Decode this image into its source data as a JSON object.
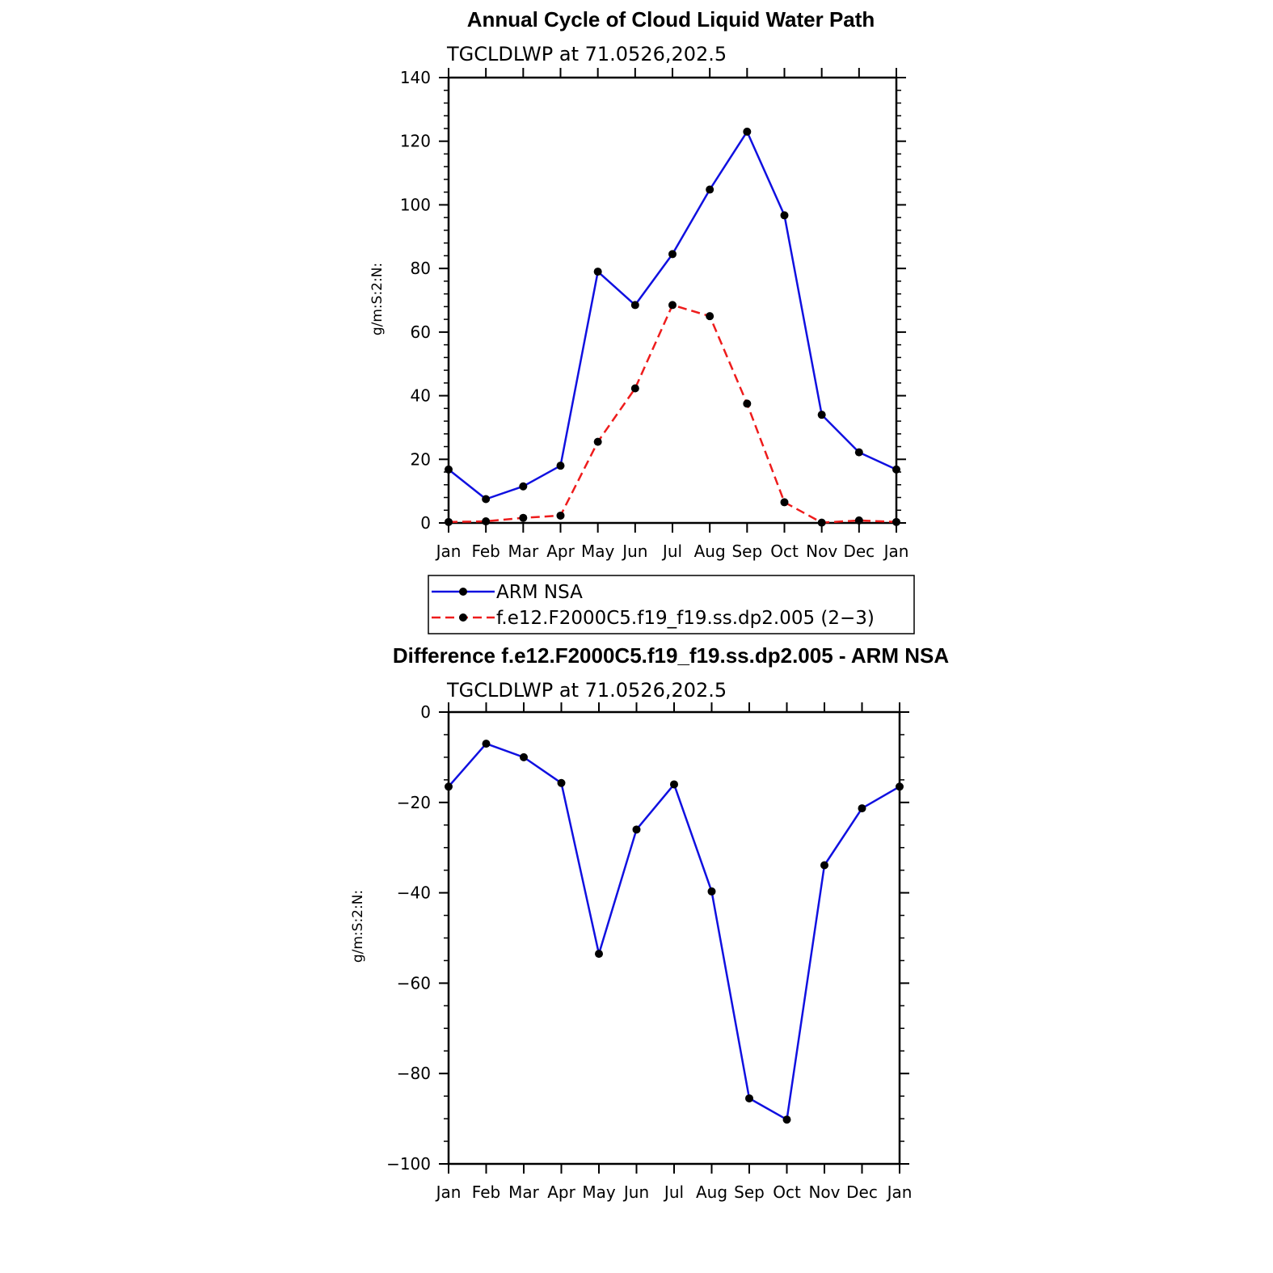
{
  "chart_data": [
    {
      "type": "line",
      "title": "Annual Cycle of Cloud Liquid Water Path",
      "subtitle": "TGCLDLWP at 71.0526,202.5",
      "xlabel": "",
      "ylabel": "g/m:S:2:N:",
      "categories": [
        "Jan",
        "Feb",
        "Mar",
        "Apr",
        "May",
        "Jun",
        "Jul",
        "Aug",
        "Sep",
        "Oct",
        "Nov",
        "Dec",
        "Jan"
      ],
      "yticks": [
        "0",
        "20",
        "40",
        "60",
        "80",
        "100",
        "120",
        "140"
      ],
      "ylim": [
        0,
        140
      ],
      "grid": false,
      "legend_position": "below",
      "series": [
        {
          "name": "ARM NSA",
          "color": "#1010e0",
          "dash": "solid",
          "values": [
            16.8,
            7.5,
            11.5,
            18.0,
            79.0,
            68.5,
            84.5,
            104.8,
            123.0,
            96.7,
            34.0,
            22.2,
            16.8
          ]
        },
        {
          "name": "f.e12.F2000C5.f19_f19.ss.dp2.005 (2−3)",
          "color": "#ee1c1c",
          "dash": "dashed",
          "values": [
            0.3,
            0.5,
            1.6,
            2.3,
            25.5,
            42.3,
            68.5,
            65.0,
            37.5,
            6.5,
            0.1,
            0.8,
            0.3
          ]
        }
      ]
    },
    {
      "type": "line",
      "title": "Difference f.e12.F2000C5.f19_f19.ss.dp2.005 - ARM NSA",
      "subtitle": "TGCLDLWP at 71.0526,202.5",
      "xlabel": "",
      "ylabel": "g/m:S:2:N:",
      "categories": [
        "Jan",
        "Feb",
        "Mar",
        "Apr",
        "May",
        "Jun",
        "Jul",
        "Aug",
        "Sep",
        "Oct",
        "Nov",
        "Dec",
        "Jan"
      ],
      "yticks": [
        "−100",
        "−80",
        "−60",
        "−40",
        "−20",
        "0"
      ],
      "ylim": [
        -100,
        0
      ],
      "grid": false,
      "series": [
        {
          "color": "#1010e0",
          "dash": "solid",
          "values": [
            -16.5,
            -7.0,
            -10.0,
            -15.7,
            -53.5,
            -26.0,
            -16.0,
            -39.7,
            -85.5,
            -90.2,
            -33.9,
            -21.3,
            -16.5
          ]
        }
      ]
    }
  ]
}
